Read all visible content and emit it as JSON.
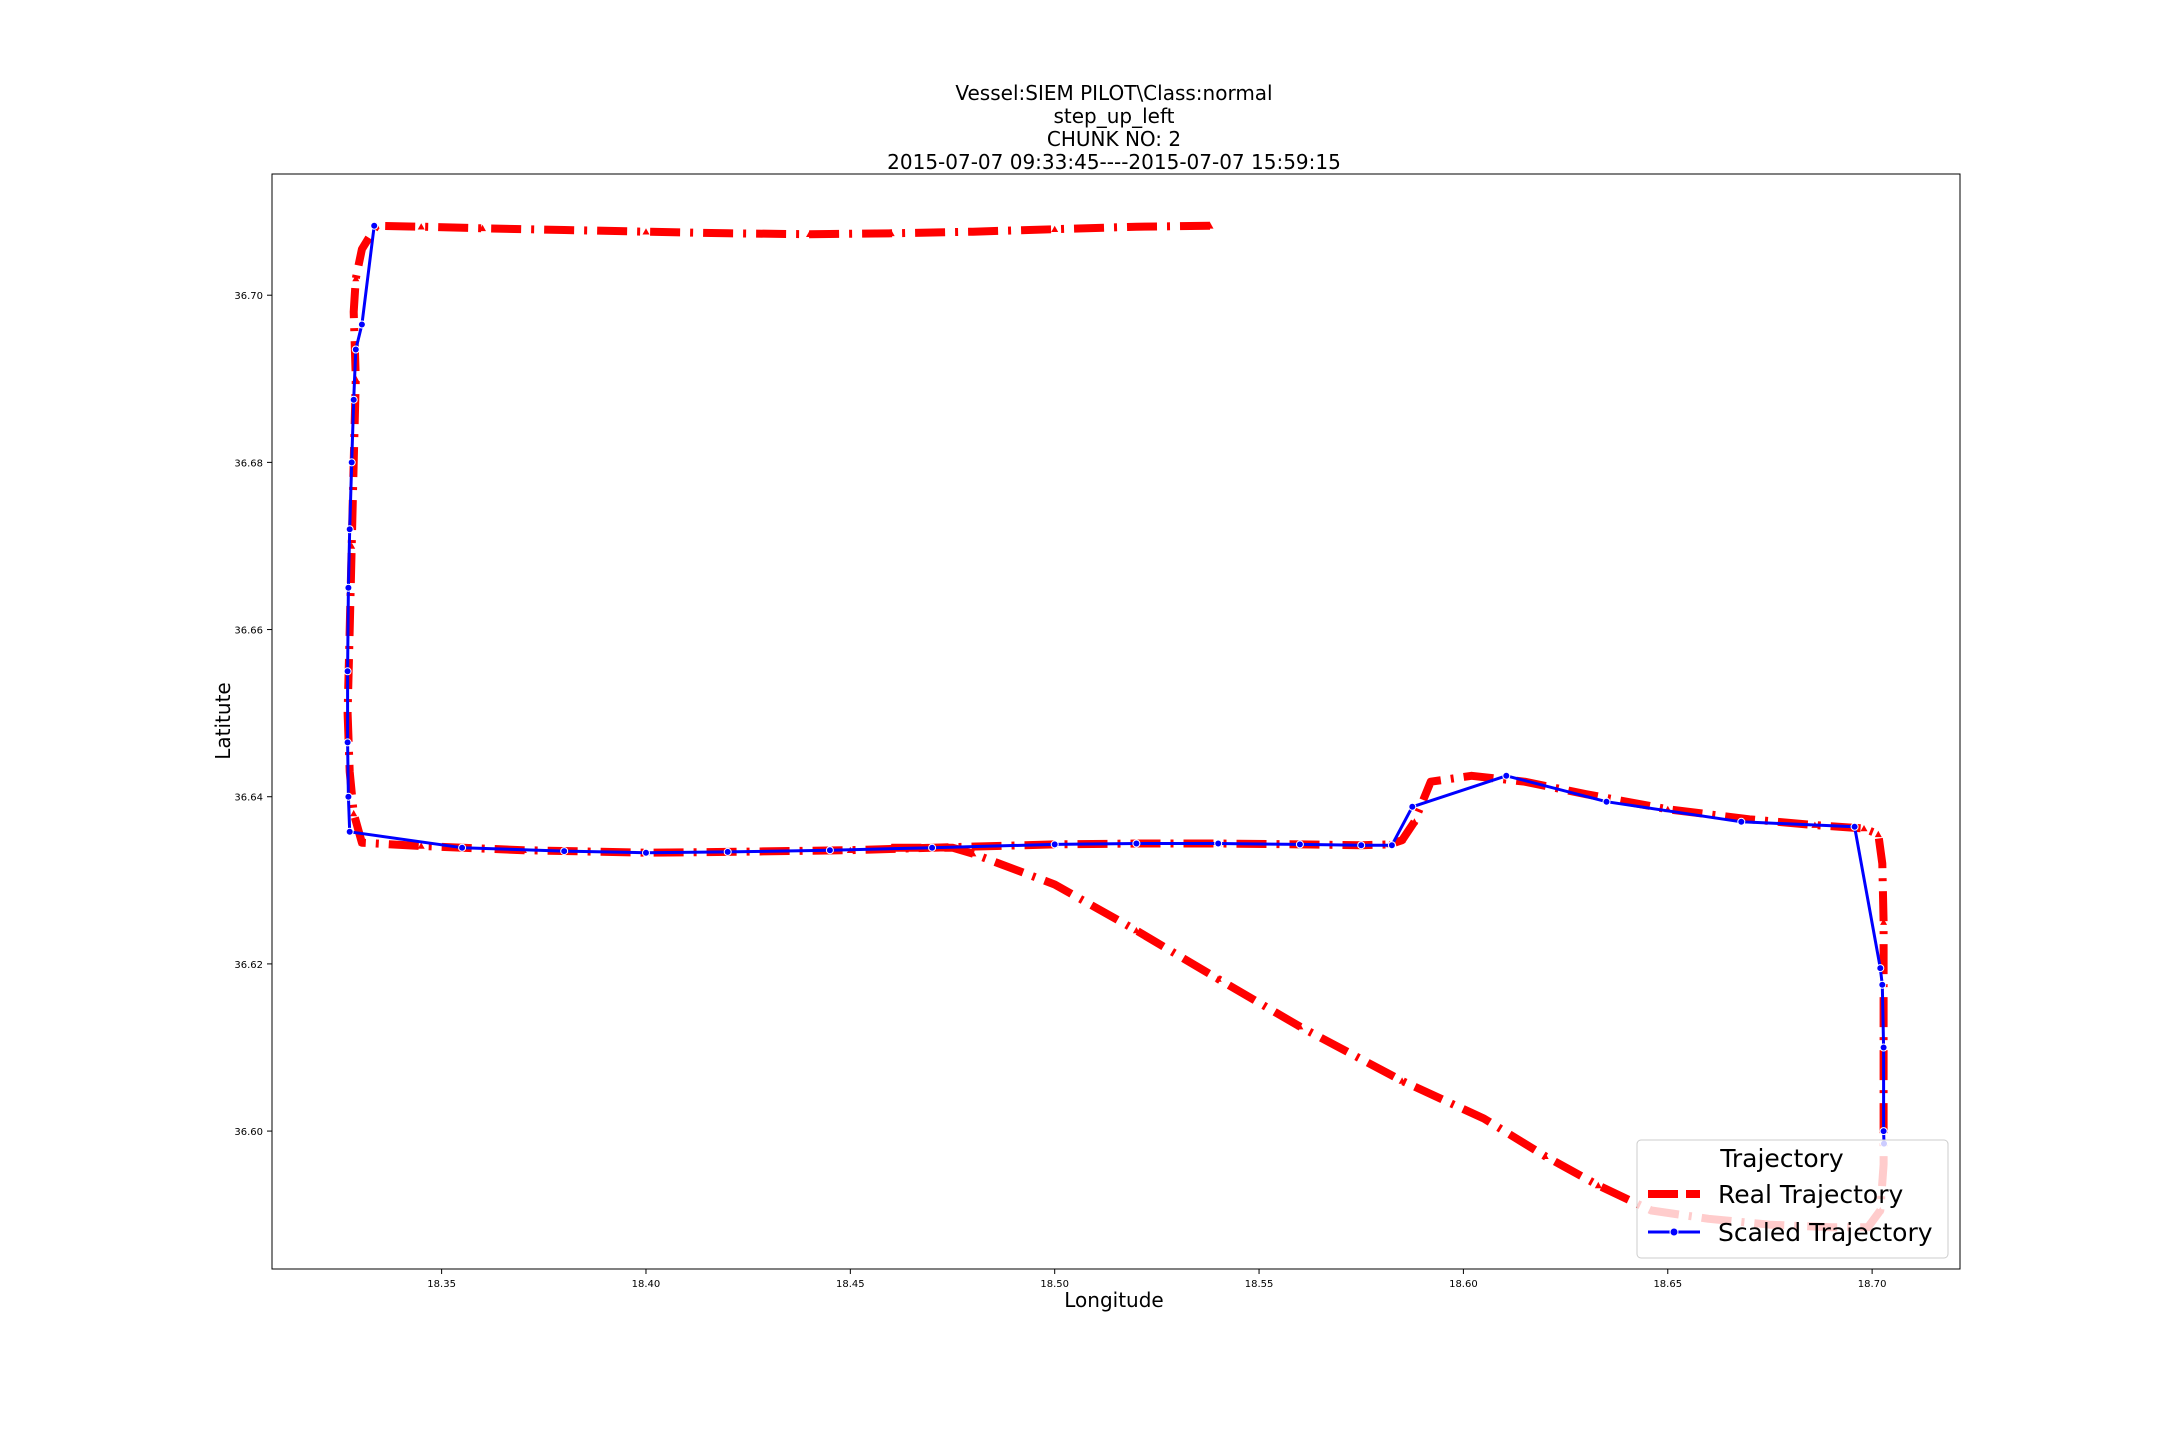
{
  "chart_data": {
    "type": "line",
    "title_lines": [
      "Vessel:SIEM PILOT\\Class:normal",
      "step_up_left",
      "CHUNK NO: 2",
      "2015-07-07 09:33:45----2015-07-07 15:59:15"
    ],
    "xlabel": "Longitude",
    "ylabel": "Latitute",
    "xlim": [
      18.3085,
      18.7215
    ],
    "ylim": [
      36.5835,
      36.7145
    ],
    "x_ticks": [
      "18.35",
      "18.40",
      "18.45",
      "18.50",
      "18.55",
      "18.60",
      "18.65",
      "18.70"
    ],
    "x_tick_values": [
      18.35,
      18.4,
      18.45,
      18.5,
      18.55,
      18.6,
      18.65,
      18.7
    ],
    "y_ticks": [
      "36.60",
      "36.62",
      "36.64",
      "36.66",
      "36.68",
      "36.70"
    ],
    "y_tick_values": [
      36.6,
      36.62,
      36.64,
      36.66,
      36.68,
      36.7
    ],
    "grid": false,
    "legend": {
      "title": "Trajectory",
      "placement": "lower-right",
      "entries": [
        "Real Trajectory",
        "Scaled Trajectory"
      ]
    },
    "series": [
      {
        "name": "Real Trajectory",
        "color": "#ff0000",
        "style": "dashdot",
        "marker": "triangle",
        "x": [
          18.538,
          18.52,
          18.5,
          18.48,
          18.46,
          18.44,
          18.42,
          18.4,
          18.38,
          18.36,
          18.345,
          18.334,
          18.3305,
          18.329,
          18.3285,
          18.329,
          18.3285,
          18.328,
          18.3275,
          18.327,
          18.3275,
          18.3285,
          18.3305,
          18.345,
          18.37,
          18.4,
          18.42,
          18.45,
          18.47,
          18.5,
          18.52,
          18.54,
          18.56,
          18.575,
          18.582,
          18.585,
          18.588,
          18.592,
          18.602,
          18.615,
          18.63,
          18.65,
          18.67,
          18.686,
          18.698,
          18.7015,
          18.7025,
          18.7028,
          18.7028,
          18.7028,
          18.702,
          18.699,
          18.69,
          18.675,
          18.66,
          18.646,
          18.633,
          18.62,
          18.605,
          18.585,
          18.56,
          18.54,
          18.52,
          18.5,
          18.48,
          18.475,
          18.46
        ],
        "y": [
          36.7083,
          36.7082,
          36.7079,
          36.7076,
          36.7074,
          36.7073,
          36.7074,
          36.7076,
          36.7078,
          36.708,
          36.7082,
          36.7083,
          36.7055,
          36.702,
          36.698,
          36.69,
          36.68,
          36.67,
          36.66,
          36.65,
          36.643,
          36.638,
          36.6345,
          36.6341,
          36.6336,
          36.6333,
          36.6334,
          36.6336,
          36.6339,
          36.6343,
          36.6344,
          36.6344,
          36.6343,
          36.6342,
          36.6343,
          36.6348,
          36.637,
          36.6418,
          36.6425,
          36.6418,
          36.6403,
          36.6385,
          36.6373,
          36.6366,
          36.6362,
          36.6355,
          36.632,
          36.625,
          36.61,
          36.596,
          36.5905,
          36.5885,
          36.5885,
          36.5888,
          36.5895,
          36.5905,
          36.5935,
          36.597,
          36.6015,
          36.606,
          36.6125,
          36.6182,
          36.624,
          36.6295,
          36.6332,
          36.6339,
          36.6339
        ]
      },
      {
        "name": "Scaled Trajectory",
        "color": "#0000ff",
        "style": "solid",
        "marker": "circle",
        "x": [
          18.3335,
          18.3305,
          18.329,
          18.3285,
          18.328,
          18.3275,
          18.3272,
          18.327,
          18.327,
          18.3272,
          18.3275,
          18.355,
          18.38,
          18.4,
          18.42,
          18.445,
          18.47,
          18.5,
          18.52,
          18.54,
          18.56,
          18.575,
          18.5825,
          18.5875,
          18.6105,
          18.635,
          18.668,
          18.6957,
          18.702,
          18.7025,
          18.7028,
          18.7028,
          18.7029
        ],
        "y": [
          36.7083,
          36.6965,
          36.6935,
          36.6875,
          36.68,
          36.672,
          36.665,
          36.655,
          36.6465,
          36.64,
          36.6358,
          36.6339,
          36.6335,
          36.6333,
          36.6334,
          36.6336,
          36.6339,
          36.6343,
          36.6344,
          36.6344,
          36.6343,
          36.6342,
          36.6342,
          36.6388,
          36.6425,
          36.6394,
          36.637,
          36.6364,
          36.6195,
          36.6175,
          36.61,
          36.6,
          36.5985
        ]
      }
    ]
  }
}
